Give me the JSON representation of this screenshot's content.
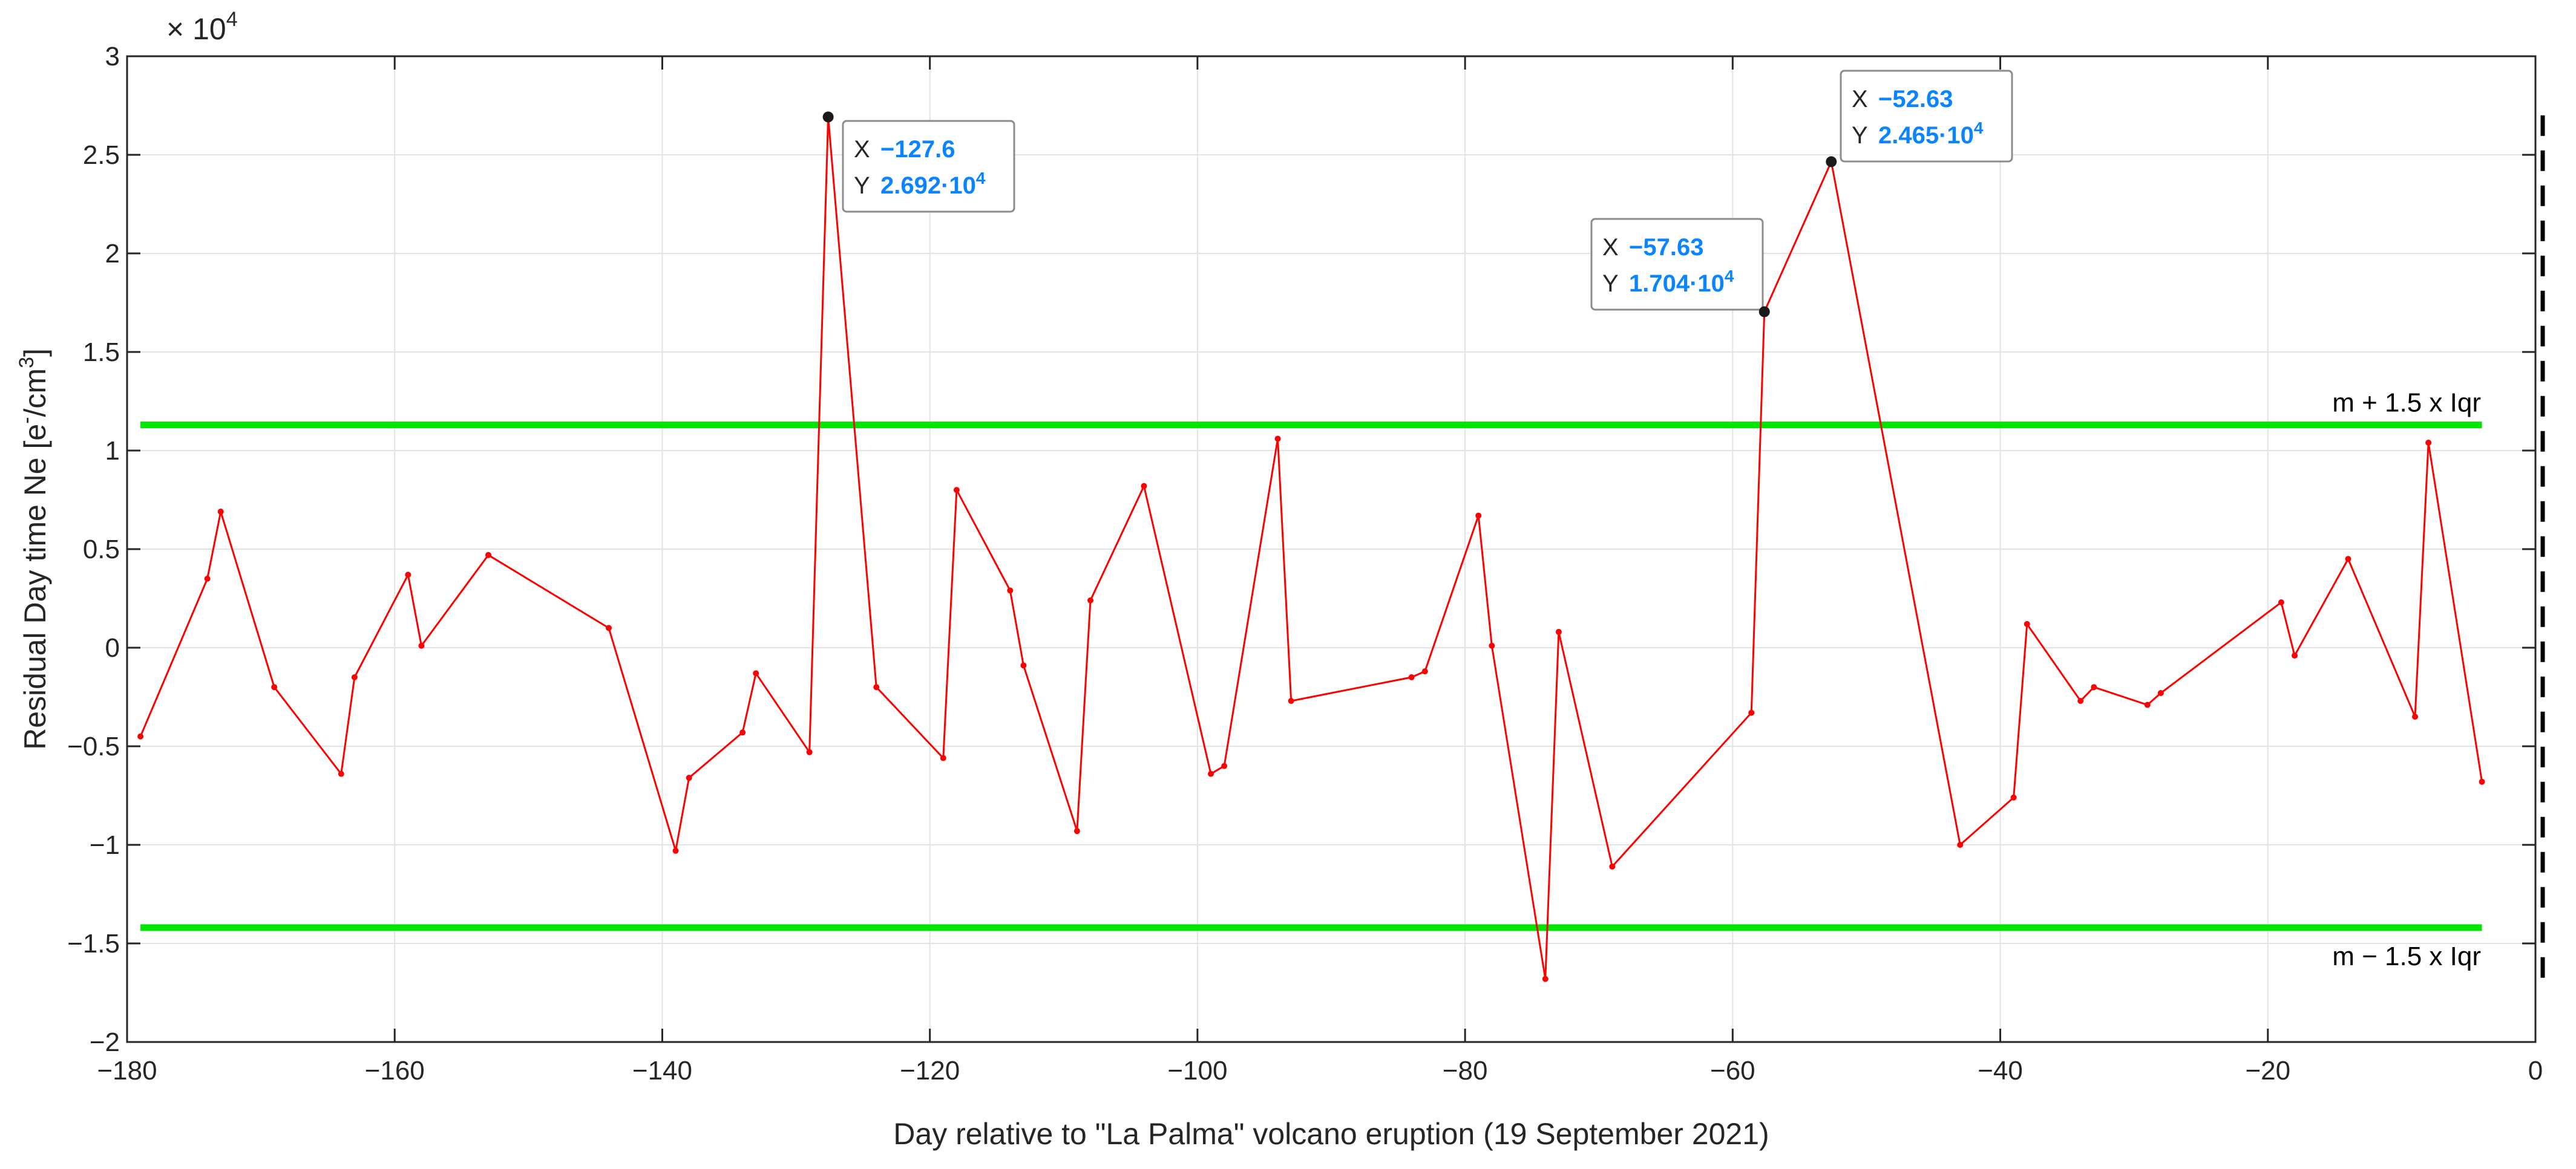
{
  "chart_data": {
    "type": "line",
    "title": "",
    "xlabel": "Day relative to \"La Palma\" volcano eruption (19 September 2021)",
    "ylabel_main": "Residual Day time Ne [e",
    "ylabel_sup1": "-",
    "ylabel_mid": "/cm",
    "ylabel_sup2": "3",
    "ylabel_end": "]",
    "y_multiplier_base": "× 10",
    "y_multiplier_exp": "4",
    "xlim": [
      -180,
      0
    ],
    "ylim": [
      -2,
      3
    ],
    "x_ticks": [
      -180,
      -160,
      -140,
      -120,
      -100,
      -80,
      -60,
      -40,
      -20,
      0
    ],
    "x_tick_labels": [
      "−180",
      "−160",
      "−140",
      "−120",
      "−100",
      "−80",
      "−60",
      "−40",
      "−20",
      "0"
    ],
    "y_ticks": [
      -2,
      -1.5,
      -1,
      -0.5,
      0,
      0.5,
      1,
      1.5,
      2,
      2.5,
      3
    ],
    "y_tick_labels": [
      "−2",
      "−1.5",
      "−1",
      "−0.5",
      "0",
      "0.5",
      "1",
      "1.5",
      "2",
      "2.5",
      "3"
    ],
    "grid": true,
    "series": [
      {
        "color": "#ff0000",
        "x": [
          -179,
          -174,
          -173,
          -169,
          -164,
          -163,
          -159,
          -158,
          -153,
          -144,
          -139,
          -138,
          -134,
          -133,
          -129,
          -127.6,
          -124,
          -119,
          -118,
          -114,
          -113,
          -109,
          -108,
          -104,
          -99,
          -98,
          -94,
          -93,
          -84,
          -83,
          -79,
          -78,
          -74,
          -73,
          -69,
          -58.6,
          -57.63,
          -52.63,
          -43,
          -39,
          -38,
          -34,
          -33,
          -29,
          -28,
          -19,
          -18,
          -14,
          -9,
          -8,
          -4
        ],
        "y": [
          -0.45,
          0.35,
          0.69,
          -0.2,
          -0.64,
          -0.15,
          0.37,
          0.01,
          0.47,
          0.1,
          -1.03,
          -0.66,
          -0.43,
          -0.13,
          -0.53,
          2.692,
          -0.2,
          -0.56,
          0.8,
          0.29,
          -0.09,
          -0.93,
          0.24,
          0.82,
          -0.64,
          -0.6,
          1.06,
          -0.27,
          -0.15,
          -0.12,
          0.67,
          0.01,
          -1.68,
          0.08,
          -1.11,
          -0.33,
          1.704,
          2.465,
          -1.0,
          -0.76,
          0.12,
          -0.27,
          -0.2,
          -0.29,
          -0.23,
          0.23,
          -0.04,
          0.45,
          -0.35,
          1.04,
          -0.68
        ]
      }
    ],
    "threshold_lines": [
      {
        "label": "m + 1.5 x Iqr",
        "y": 1.13,
        "color": "#00e600"
      },
      {
        "label": "m − 1.5 x Iqr",
        "y": -1.42,
        "color": "#00e600"
      }
    ],
    "eruption_marker": {
      "x": 0,
      "y_range": [
        -1.7,
        2.7
      ],
      "style": "dashed",
      "color": "#000000"
    },
    "datatips": [
      {
        "x": -127.6,
        "y": 2.692,
        "x_label": "X",
        "y_label": "Y",
        "x_text": "−127.6",
        "y_text": "2.692·10",
        "y_exp": "4"
      },
      {
        "x": -57.63,
        "y": 1.704,
        "x_label": "X",
        "y_label": "Y",
        "x_text": "−57.63",
        "y_text": "1.704·10",
        "y_exp": "4"
      },
      {
        "x": -52.63,
        "y": 2.465,
        "x_label": "X",
        "y_label": "Y",
        "x_text": "−52.63",
        "y_text": "2.465·10",
        "y_exp": "4"
      }
    ]
  }
}
